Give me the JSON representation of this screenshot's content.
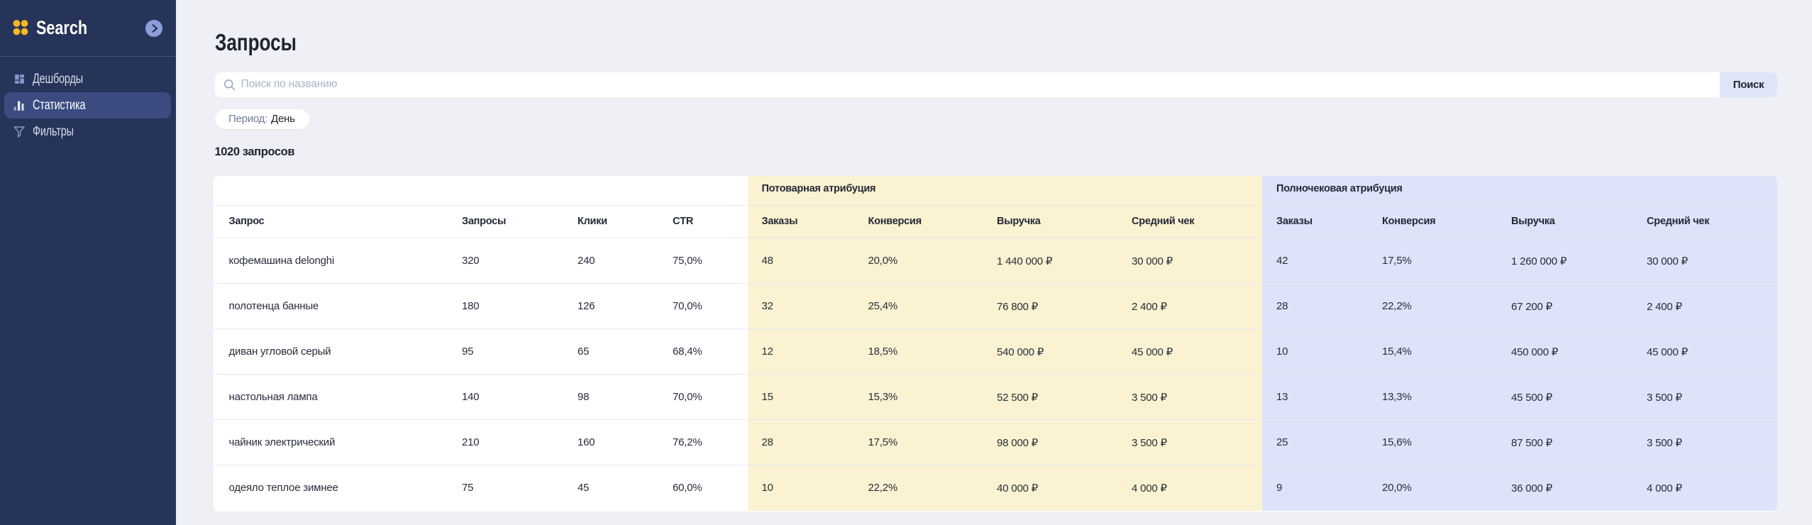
{
  "sidebar": {
    "brand": "Search",
    "items": [
      {
        "label": "Дешборды",
        "icon": "dashboard-icon",
        "selected": false
      },
      {
        "label": "Статистика",
        "icon": "bar-chart-icon",
        "selected": true
      },
      {
        "label": "Фильтры",
        "icon": "filter-icon",
        "selected": false
      }
    ]
  },
  "page": {
    "title": "Запросы",
    "count_text": "1020 запросов"
  },
  "search": {
    "placeholder": "Поиск по названию",
    "value": "",
    "button_label": "Поиск"
  },
  "filters": {
    "period_label": "Период:",
    "period_value": "День"
  },
  "colors": {
    "sidebar_bg": "#273459",
    "sidebar_selected_bg": "#3B4B80",
    "accent_yellow_block": "#FBF2D1",
    "accent_blue_block": "#DDE3F8",
    "logo_yellow": "#F6B821",
    "main_bg": "#EEF0F5"
  },
  "table": {
    "groups": [
      {
        "label": "",
        "span": 4
      },
      {
        "label": "Потоварная атрибуция",
        "span": 4
      },
      {
        "label": "Полночековая атрибуция",
        "span": 4
      }
    ],
    "columns": [
      "Запрос",
      "Запросы",
      "Клики",
      "CTR",
      "Заказы",
      "Конверсия",
      "Выручка",
      "Средний чек",
      "Заказы",
      "Конверсия",
      "Выручка",
      "Средний чек"
    ],
    "rows": [
      [
        "кофемашина delonghi",
        "320",
        "240",
        "75,0%",
        "48",
        "20,0%",
        "1 440 000 ₽",
        "30 000 ₽",
        "42",
        "17,5%",
        "1 260 000 ₽",
        "30 000 ₽"
      ],
      [
        "полотенца банные",
        "180",
        "126",
        "70,0%",
        "32",
        "25,4%",
        "76 800 ₽",
        "2 400 ₽",
        "28",
        "22,2%",
        "67 200 ₽",
        "2 400 ₽"
      ],
      [
        "диван угловой серый",
        "95",
        "65",
        "68,4%",
        "12",
        "18,5%",
        "540 000 ₽",
        "45 000 ₽",
        "10",
        "15,4%",
        "450 000 ₽",
        "45 000 ₽"
      ],
      [
        "настольная лампа",
        "140",
        "98",
        "70,0%",
        "15",
        "15,3%",
        "52 500 ₽",
        "3 500 ₽",
        "13",
        "13,3%",
        "45 500 ₽",
        "3 500 ₽"
      ],
      [
        "чайник электрический",
        "210",
        "160",
        "76,2%",
        "28",
        "17,5%",
        "98 000 ₽",
        "3 500 ₽",
        "25",
        "15,6%",
        "87 500 ₽",
        "3 500 ₽"
      ],
      [
        "одеяло теплое зимнее",
        "75",
        "45",
        "60,0%",
        "10",
        "22,2%",
        "40 000 ₽",
        "4 000 ₽",
        "9",
        "20,0%",
        "36 000 ₽",
        "4 000 ₽"
      ]
    ]
  }
}
